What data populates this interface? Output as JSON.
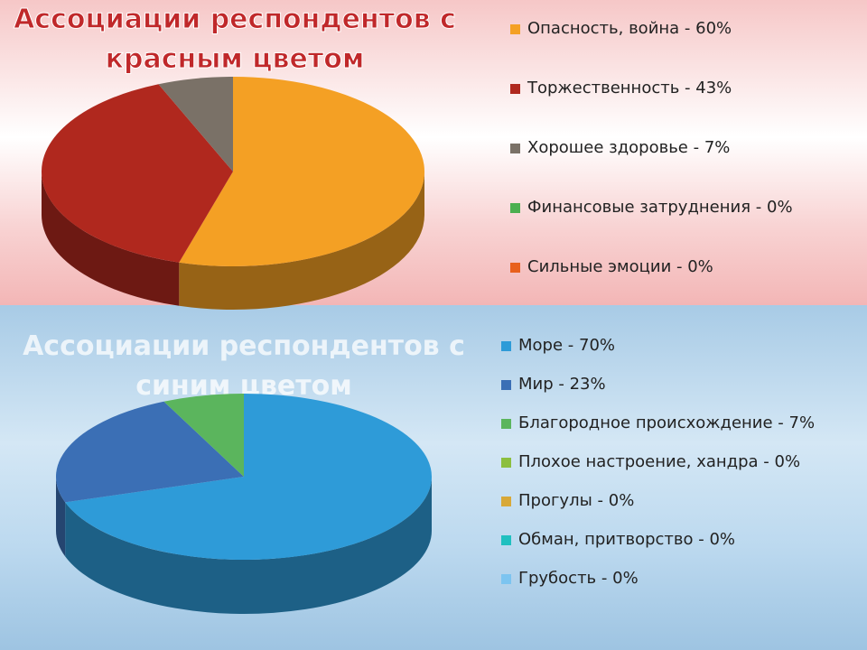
{
  "chart_data": [
    {
      "type": "pie3d",
      "title": "Ассоциации респондентов с красным цветом",
      "categories": [
        "Опасность, война -",
        "Торжественность -",
        "Хорошее здоровье -",
        "Финансовые затруднения -",
        "Сильные эмоции -"
      ],
      "values": [
        60,
        43,
        7,
        0,
        0
      ],
      "value_labels": [
        "60%",
        "43%",
        "7%",
        "0%",
        "0%"
      ],
      "colors": [
        "#f4a024",
        "#b0281e",
        "#7a7167",
        "#4caf50",
        "#e8601c"
      ]
    },
    {
      "type": "pie3d",
      "title": "Ассоциации респондентов с синим цветом",
      "categories": [
        "Море -",
        "Мир -",
        "Благородное происхождение -",
        "Плохое настроение, хандра -",
        "Прогулы -",
        "Обман, притворство -",
        "Грубость -"
      ],
      "values": [
        70,
        23,
        7,
        0,
        0,
        0,
        0
      ],
      "value_labels": [
        "70%",
        "23%",
        "7%",
        "0%",
        "0%",
        "0%",
        "0%"
      ],
      "colors": [
        "#2e9bd8",
        "#3b6fb5",
        "#5bb55d",
        "#8cbf3f",
        "#d8a838",
        "#20c0c0",
        "#7cc4f0"
      ]
    }
  ]
}
